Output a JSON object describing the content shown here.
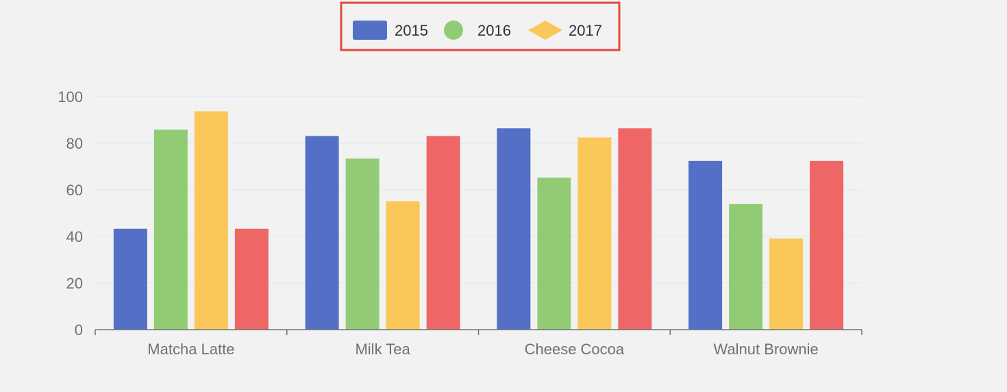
{
  "chart_data": {
    "type": "bar",
    "categories": [
      "Matcha Latte",
      "Milk Tea",
      "Cheese Cocoa",
      "Walnut Brownie"
    ],
    "series": [
      {
        "name": "2015",
        "values": [
          43.3,
          83.1,
          86.4,
          72.4
        ],
        "color": "#5470c6",
        "legend_icon": "rect"
      },
      {
        "name": "2016",
        "values": [
          85.8,
          73.4,
          65.2,
          53.9
        ],
        "color": "#91cc75",
        "legend_icon": "circle"
      },
      {
        "name": "2017",
        "values": [
          93.7,
          55.1,
          82.5,
          39.1
        ],
        "color": "#fac858",
        "legend_icon": "diamond"
      },
      {
        "values": [
          43.3,
          83.1,
          86.4,
          72.4
        ],
        "color": "#ee6666"
      }
    ],
    "yticks": [
      0,
      20,
      40,
      60,
      80,
      100
    ],
    "ylim": [
      0,
      100
    ],
    "grid": true,
    "legend_position": "top-center",
    "legend_highlight_color": "#e04a3a",
    "axis_color": "#6e7079",
    "gridline_color": "#e0e6f1",
    "label_color": "#6e7079"
  }
}
